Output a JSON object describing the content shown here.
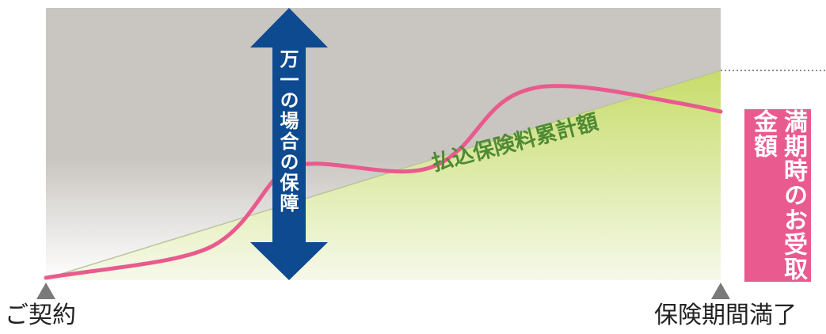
{
  "labels": {
    "start": "ご契約",
    "end": "保険期間満了",
    "arrow": "万一の場合の保障",
    "premium_total": "払込保険料累計額",
    "maturity": "満期時のお受取金額"
  },
  "colors": {
    "background_top": "#c9c5c0",
    "background_bottom": "#ffffff",
    "premium_area_top": "#c7dc6a",
    "premium_area_bottom": "#f6f9ea",
    "curve": "#e95a8e",
    "arrow": "#0d4a8f",
    "maturity_box": "#e95a8e",
    "premium_text": "#4f8a35",
    "triangle_marker": "#7a7a7a"
  },
  "icons": {
    "start_marker": "triangle-up-icon",
    "end_marker": "triangle-up-icon",
    "arrow": "double-headed-vertical-arrow-icon"
  }
}
